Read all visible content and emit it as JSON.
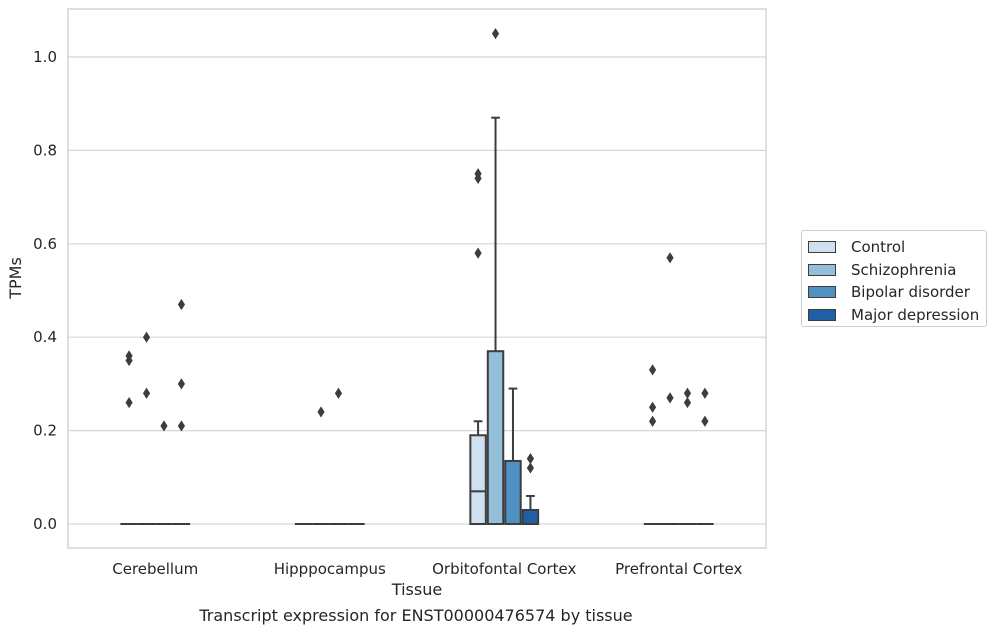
{
  "chart_data": {
    "type": "box",
    "title": "",
    "xlabel": "Tissue",
    "ylabel": "TPMs",
    "caption": "Transcript expression for ENST00000476574 by tissue",
    "ylim": [
      -0.05,
      1.1
    ],
    "yticks": [
      0.0,
      0.2,
      0.4,
      0.6,
      0.8,
      1.0
    ],
    "ytick_labels": [
      "0.0",
      "0.2",
      "0.4",
      "0.6",
      "0.8",
      "1.0"
    ],
    "grid": true,
    "legend_position": "right",
    "categories": [
      "Cerebellum",
      "Hipppocampus",
      "Orbitofontal Cortex",
      "Prefrontal Cortex"
    ],
    "series": [
      {
        "name": "Control",
        "color": "#cfe0f0",
        "boxes": [
          {
            "q1": 0,
            "median": 0,
            "q3": 0,
            "whisker_low": 0,
            "whisker_high": 0,
            "outliers": [
              0.36,
              0.35,
              0.26
            ]
          },
          {
            "q1": 0,
            "median": 0,
            "q3": 0,
            "whisker_low": 0,
            "whisker_high": 0,
            "outliers": []
          },
          {
            "q1": 0,
            "median": 0.07,
            "q3": 0.19,
            "whisker_low": 0,
            "whisker_high": 0.22,
            "outliers": [
              0.75,
              0.74,
              0.58
            ]
          },
          {
            "q1": 0,
            "median": 0,
            "q3": 0,
            "whisker_low": 0,
            "whisker_high": 0,
            "outliers": [
              0.33,
              0.25,
              0.22
            ]
          }
        ]
      },
      {
        "name": "Schizophrenia",
        "color": "#93bfdb",
        "boxes": [
          {
            "q1": 0,
            "median": 0,
            "q3": 0,
            "whisker_low": 0,
            "whisker_high": 0,
            "outliers": [
              0.4,
              0.28
            ]
          },
          {
            "q1": 0,
            "median": 0,
            "q3": 0,
            "whisker_low": 0,
            "whisker_high": 0,
            "outliers": [
              0.24
            ]
          },
          {
            "q1": 0,
            "median": 0,
            "q3": 0.37,
            "whisker_low": 0,
            "whisker_high": 0.87,
            "outliers": [
              1.05
            ]
          },
          {
            "q1": 0,
            "median": 0,
            "q3": 0,
            "whisker_low": 0,
            "whisker_high": 0,
            "outliers": [
              0.57,
              0.27
            ]
          }
        ]
      },
      {
        "name": "Bipolar disorder",
        "color": "#4f91c2",
        "boxes": [
          {
            "q1": 0,
            "median": 0,
            "q3": 0,
            "whisker_low": 0,
            "whisker_high": 0,
            "outliers": [
              0.21
            ]
          },
          {
            "q1": 0,
            "median": 0,
            "q3": 0,
            "whisker_low": 0,
            "whisker_high": 0,
            "outliers": [
              0.28
            ]
          },
          {
            "q1": 0,
            "median": 0,
            "q3": 0.135,
            "whisker_low": 0,
            "whisker_high": 0.29,
            "outliers": []
          },
          {
            "q1": 0,
            "median": 0,
            "q3": 0,
            "whisker_low": 0,
            "whisker_high": 0,
            "outliers": [
              0.28,
              0.26
            ]
          }
        ]
      },
      {
        "name": "Major depression",
        "color": "#1f5fa5",
        "boxes": [
          {
            "q1": 0,
            "median": 0,
            "q3": 0,
            "whisker_low": 0,
            "whisker_high": 0,
            "outliers": [
              0.47,
              0.3,
              0.21
            ]
          },
          {
            "q1": 0,
            "median": 0,
            "q3": 0,
            "whisker_low": 0,
            "whisker_high": 0,
            "outliers": []
          },
          {
            "q1": 0,
            "median": 0,
            "q3": 0.03,
            "whisker_low": 0,
            "whisker_high": 0.06,
            "outliers": [
              0.14,
              0.12
            ]
          },
          {
            "q1": 0,
            "median": 0,
            "q3": 0,
            "whisker_low": 0,
            "whisker_high": 0,
            "outliers": [
              0.28,
              0.22
            ]
          }
        ]
      }
    ]
  }
}
